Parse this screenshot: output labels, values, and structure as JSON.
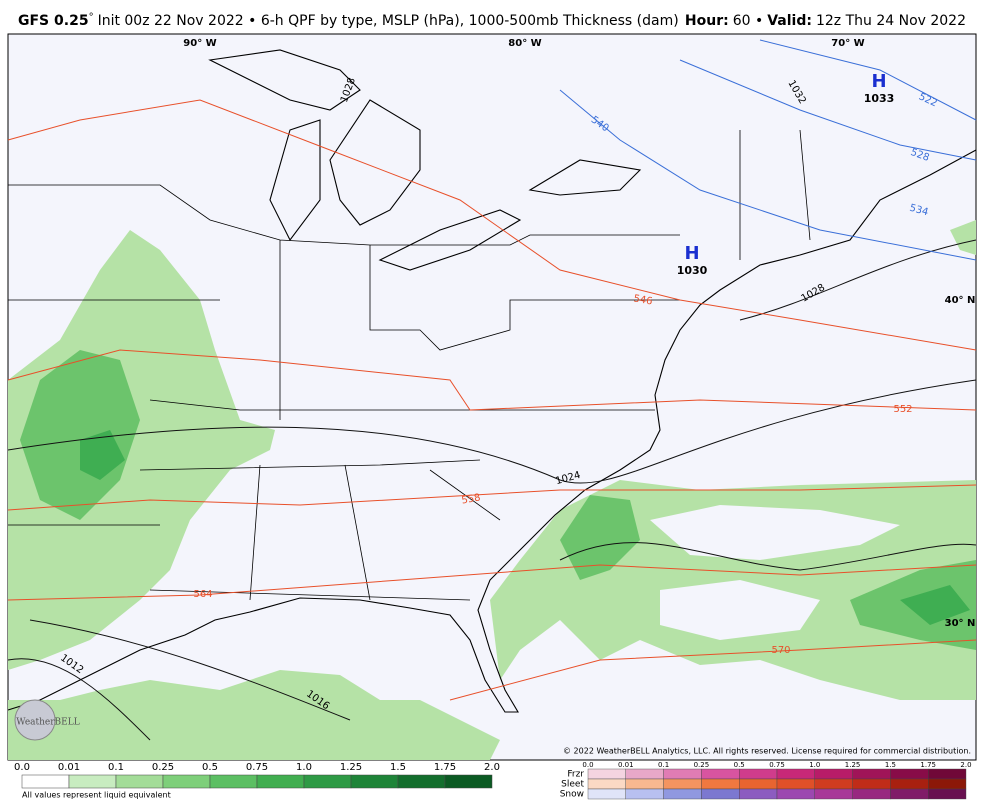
{
  "header": {
    "model": "GFS 0.25",
    "degree": "°",
    "description": "Init 00z 22 Nov 2022 • 6-h QPF by type, MSLP (hPa), 1000-500mb Thickness (dam)",
    "hour_label": "Hour:",
    "hour": "60 •",
    "valid_label": "Valid:",
    "valid": "12z Thu 24 Nov 2022"
  },
  "map": {
    "longitude_labels": [
      "90° W",
      "80° W",
      "70° W"
    ],
    "latitude_labels": [
      "40° N",
      "30° N"
    ],
    "highs": [
      {
        "symbol": "H",
        "pressure": "1030"
      },
      {
        "symbol": "H",
        "pressure": "1033"
      }
    ],
    "isobar_labels": [
      "1028",
      "1032",
      "1028",
      "1024",
      "1016",
      "1012"
    ],
    "thickness_labels": [
      "540",
      "522",
      "528",
      "534",
      "546",
      "552",
      "558",
      "564",
      "570"
    ],
    "logo": "WeatherBELL",
    "copyright": "© 2022 WeatherBELL Analytics, LLC. All rights reserved. License required for commercial distribution."
  },
  "legend": {
    "rain_scale": [
      "0.0",
      "0.01",
      "0.1",
      "0.25",
      "0.5",
      "0.75",
      "1.0",
      "1.25",
      "1.5",
      "1.75",
      "2.0"
    ],
    "note": "All values represent liquid equivalent",
    "types": [
      "Frzr",
      "Sleet",
      "Snow"
    ],
    "type_scale": [
      "0.0",
      "0.01",
      "0.1",
      "0.25",
      "0.5",
      "0.75",
      "1.0",
      "1.25",
      "1.5",
      "1.75",
      "2.0"
    ]
  }
}
